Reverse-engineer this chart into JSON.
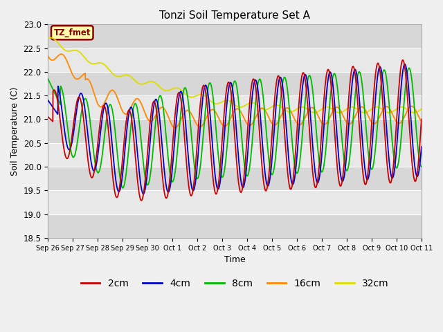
{
  "title": "Tonzi Soil Temperature Set A",
  "xlabel": "Time",
  "ylabel": "Soil Temperature (C)",
  "ylim": [
    18.5,
    23.0
  ],
  "yticks": [
    18.5,
    19.0,
    19.5,
    20.0,
    20.5,
    21.0,
    21.5,
    22.0,
    22.5,
    23.0
  ],
  "xtick_labels": [
    "Sep 26",
    "Sep 27",
    "Sep 28",
    "Sep 29",
    "Sep 30",
    "Oct 1",
    "Oct 2",
    "Oct 3",
    "Oct 4",
    "Oct 5",
    "Oct 6",
    "Oct 7",
    "Oct 8",
    "Oct 9",
    "Oct 10",
    "Oct 11"
  ],
  "annotation_text": "TZ_fmet",
  "annotation_bg": "#ffffaa",
  "annotation_border": "#8b0000",
  "line_colors": {
    "2cm": "#cc0000",
    "4cm": "#0000cc",
    "8cm": "#00bb00",
    "16cm": "#ff8800",
    "32cm": "#dddd00"
  },
  "legend_labels": [
    "2cm",
    "4cm",
    "8cm",
    "16cm",
    "32cm"
  ],
  "plot_bg": "#e8e8e8",
  "n_points": 1500,
  "total_days": 15
}
